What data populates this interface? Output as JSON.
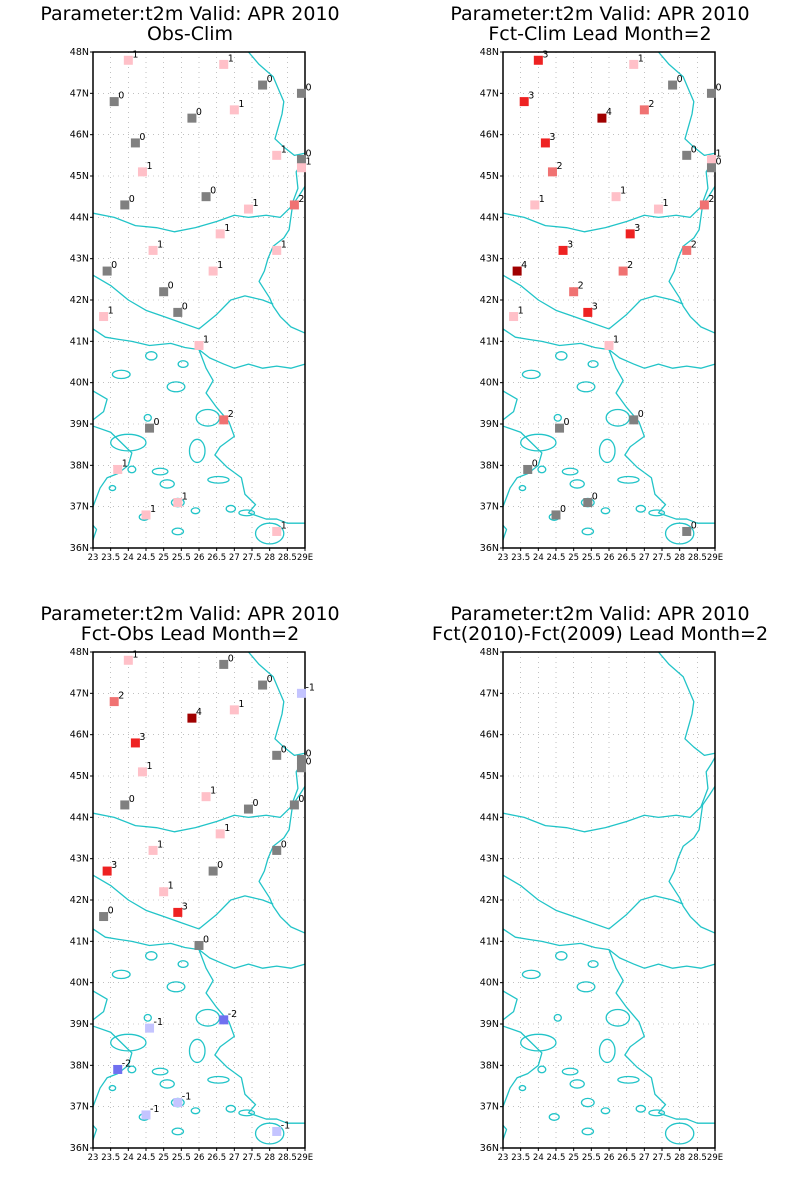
{
  "colors": {
    "coast": "#22c4c8",
    "grid": "#9a9a9a",
    "zero": "#808080",
    "pos1": "#ffc0c8",
    "pos2": "#f07272",
    "pos3": "#ee2222",
    "pos4": "#a00000",
    "neg1": "#c4c4ff",
    "neg2": "#7070f0"
  },
  "axes": {
    "lat_labels": [
      "36N",
      "37N",
      "38N",
      "39N",
      "40N",
      "41N",
      "42N",
      "43N",
      "44N",
      "45N",
      "46N",
      "47N",
      "48N"
    ],
    "lon_labels": [
      "23",
      "23.5",
      "24",
      "24.5",
      "25",
      "25.5",
      "26",
      "26.5",
      "27",
      "27.5",
      "28",
      "28.5",
      "29E"
    ],
    "lat_range": [
      36,
      48
    ],
    "lon_range": [
      23,
      29
    ]
  },
  "panels": [
    {
      "title": "Parameter:t2m Valid: APR 2010",
      "subtitle": "Obs-Clim",
      "stations": [
        {
          "lon": 24.0,
          "lat": 47.8,
          "v": 1
        },
        {
          "lon": 26.7,
          "lat": 47.7,
          "v": 1
        },
        {
          "lon": 27.8,
          "lat": 47.2,
          "v": 0
        },
        {
          "lon": 28.9,
          "lat": 47.0,
          "v": 0
        },
        {
          "lon": 23.6,
          "lat": 46.8,
          "v": 0
        },
        {
          "lon": 27.0,
          "lat": 46.6,
          "v": 1
        },
        {
          "lon": 25.8,
          "lat": 46.4,
          "v": 0
        },
        {
          "lon": 24.2,
          "lat": 45.8,
          "v": 0
        },
        {
          "lon": 28.2,
          "lat": 45.5,
          "v": 1
        },
        {
          "lon": 28.9,
          "lat": 45.4,
          "v": 0
        },
        {
          "lon": 28.9,
          "lat": 45.2,
          "v": 1
        },
        {
          "lon": 24.4,
          "lat": 45.1,
          "v": 1
        },
        {
          "lon": 26.2,
          "lat": 44.5,
          "v": 0
        },
        {
          "lon": 23.9,
          "lat": 44.3,
          "v": 0
        },
        {
          "lon": 27.4,
          "lat": 44.2,
          "v": 1
        },
        {
          "lon": 28.7,
          "lat": 44.3,
          "v": 2
        },
        {
          "lon": 26.6,
          "lat": 43.6,
          "v": 1
        },
        {
          "lon": 28.2,
          "lat": 43.2,
          "v": 1
        },
        {
          "lon": 24.7,
          "lat": 43.2,
          "v": 1
        },
        {
          "lon": 26.4,
          "lat": 42.7,
          "v": 1
        },
        {
          "lon": 23.4,
          "lat": 42.7,
          "v": 0
        },
        {
          "lon": 25.0,
          "lat": 42.2,
          "v": 0
        },
        {
          "lon": 25.4,
          "lat": 41.7,
          "v": 0
        },
        {
          "lon": 23.3,
          "lat": 41.6,
          "v": 1
        },
        {
          "lon": 26.0,
          "lat": 40.9,
          "v": 1
        },
        {
          "lon": 24.6,
          "lat": 38.9,
          "v": 0
        },
        {
          "lon": 26.7,
          "lat": 39.1,
          "v": 2
        },
        {
          "lon": 23.7,
          "lat": 37.9,
          "v": 1
        },
        {
          "lon": 24.5,
          "lat": 36.8,
          "v": 1
        },
        {
          "lon": 25.4,
          "lat": 37.1,
          "v": 1
        },
        {
          "lon": 28.2,
          "lat": 36.4,
          "v": 1
        }
      ]
    },
    {
      "title": "Parameter:t2m Valid: APR 2010",
      "subtitle": "Fct-Clim Lead Month=2",
      "stations": [
        {
          "lon": 24.0,
          "lat": 47.8,
          "v": 3
        },
        {
          "lon": 26.7,
          "lat": 47.7,
          "v": 1
        },
        {
          "lon": 27.8,
          "lat": 47.2,
          "v": 0
        },
        {
          "lon": 28.9,
          "lat": 47.0,
          "v": 0
        },
        {
          "lon": 23.6,
          "lat": 46.8,
          "v": 3
        },
        {
          "lon": 27.0,
          "lat": 46.6,
          "v": 2
        },
        {
          "lon": 25.8,
          "lat": 46.4,
          "v": 4
        },
        {
          "lon": 24.2,
          "lat": 45.8,
          "v": 3
        },
        {
          "lon": 28.2,
          "lat": 45.5,
          "v": 0
        },
        {
          "lon": 28.9,
          "lat": 45.4,
          "v": 1
        },
        {
          "lon": 28.9,
          "lat": 45.2,
          "v": 0
        },
        {
          "lon": 24.4,
          "lat": 45.1,
          "v": 2
        },
        {
          "lon": 26.2,
          "lat": 44.5,
          "v": 1
        },
        {
          "lon": 23.9,
          "lat": 44.3,
          "v": 1
        },
        {
          "lon": 27.4,
          "lat": 44.2,
          "v": 1
        },
        {
          "lon": 28.7,
          "lat": 44.3,
          "v": 2
        },
        {
          "lon": 26.6,
          "lat": 43.6,
          "v": 3
        },
        {
          "lon": 28.2,
          "lat": 43.2,
          "v": 2
        },
        {
          "lon": 24.7,
          "lat": 43.2,
          "v": 3
        },
        {
          "lon": 26.4,
          "lat": 42.7,
          "v": 2
        },
        {
          "lon": 23.4,
          "lat": 42.7,
          "v": 4
        },
        {
          "lon": 25.0,
          "lat": 42.2,
          "v": 2
        },
        {
          "lon": 25.4,
          "lat": 41.7,
          "v": 3
        },
        {
          "lon": 23.3,
          "lat": 41.6,
          "v": 1
        },
        {
          "lon": 26.0,
          "lat": 40.9,
          "v": 1
        },
        {
          "lon": 24.6,
          "lat": 38.9,
          "v": 0
        },
        {
          "lon": 26.7,
          "lat": 39.1,
          "v": 0
        },
        {
          "lon": 23.7,
          "lat": 37.9,
          "v": 0
        },
        {
          "lon": 24.5,
          "lat": 36.8,
          "v": 0
        },
        {
          "lon": 25.4,
          "lat": 37.1,
          "v": 0
        },
        {
          "lon": 28.2,
          "lat": 36.4,
          "v": 0
        }
      ]
    },
    {
      "title": "Parameter:t2m Valid: APR 2010",
      "subtitle": "Fct-Obs Lead Month=2",
      "stations": [
        {
          "lon": 24.0,
          "lat": 47.8,
          "v": 1
        },
        {
          "lon": 26.7,
          "lat": 47.7,
          "v": 0
        },
        {
          "lon": 27.8,
          "lat": 47.2,
          "v": 0
        },
        {
          "lon": 28.9,
          "lat": 47.0,
          "v": -1
        },
        {
          "lon": 23.6,
          "lat": 46.8,
          "v": 2
        },
        {
          "lon": 27.0,
          "lat": 46.6,
          "v": 1
        },
        {
          "lon": 25.8,
          "lat": 46.4,
          "v": 4
        },
        {
          "lon": 24.2,
          "lat": 45.8,
          "v": 3
        },
        {
          "lon": 28.2,
          "lat": 45.5,
          "v": 0
        },
        {
          "lon": 28.9,
          "lat": 45.4,
          "v": 0
        },
        {
          "lon": 28.9,
          "lat": 45.2,
          "v": 0
        },
        {
          "lon": 24.4,
          "lat": 45.1,
          "v": 1
        },
        {
          "lon": 26.2,
          "lat": 44.5,
          "v": 1
        },
        {
          "lon": 23.9,
          "lat": 44.3,
          "v": 0
        },
        {
          "lon": 27.4,
          "lat": 44.2,
          "v": 0
        },
        {
          "lon": 28.7,
          "lat": 44.3,
          "v": 0
        },
        {
          "lon": 26.6,
          "lat": 43.6,
          "v": 1
        },
        {
          "lon": 28.2,
          "lat": 43.2,
          "v": 0
        },
        {
          "lon": 24.7,
          "lat": 43.2,
          "v": 1
        },
        {
          "lon": 26.4,
          "lat": 42.7,
          "v": 0
        },
        {
          "lon": 23.4,
          "lat": 42.7,
          "v": 3
        },
        {
          "lon": 25.0,
          "lat": 42.2,
          "v": 1
        },
        {
          "lon": 25.4,
          "lat": 41.7,
          "v": 3
        },
        {
          "lon": 23.3,
          "lat": 41.6,
          "v": 0
        },
        {
          "lon": 26.0,
          "lat": 40.9,
          "v": 0
        },
        {
          "lon": 24.6,
          "lat": 38.9,
          "v": -1
        },
        {
          "lon": 26.7,
          "lat": 39.1,
          "v": -2
        },
        {
          "lon": 23.7,
          "lat": 37.9,
          "v": -2
        },
        {
          "lon": 24.5,
          "lat": 36.8,
          "v": -1
        },
        {
          "lon": 25.4,
          "lat": 37.1,
          "v": -1
        },
        {
          "lon": 28.2,
          "lat": 36.4,
          "v": -1
        }
      ]
    },
    {
      "title": "Parameter:t2m Valid: APR 2010",
      "subtitle": "Fct(2010)-Fct(2009) Lead Month=2",
      "stations": []
    }
  ]
}
